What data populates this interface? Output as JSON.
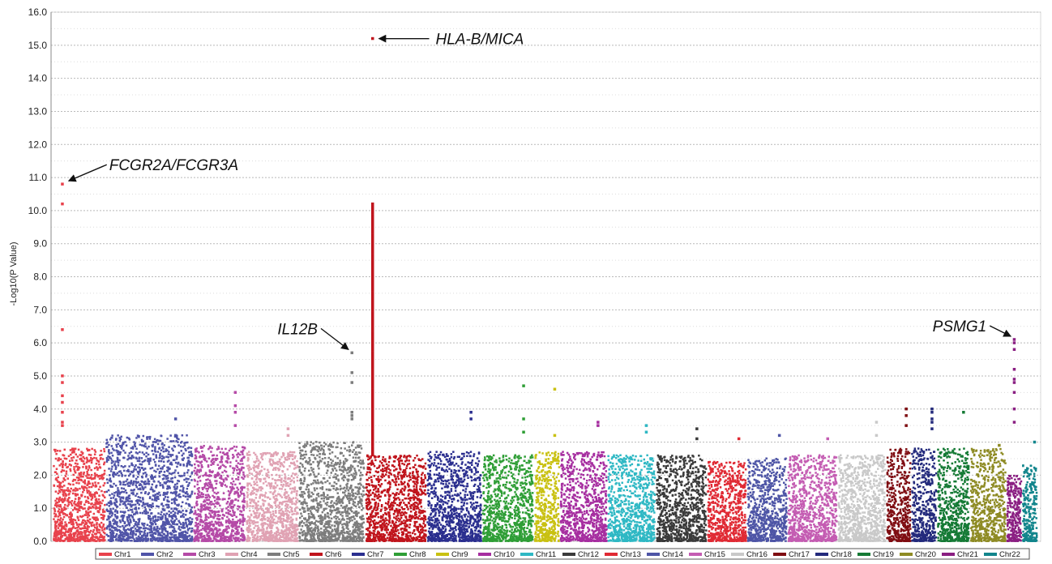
{
  "chart_data": {
    "type": "scatter",
    "title": "",
    "xlabel": "",
    "ylabel": "-Log10(P Value)",
    "ylim": [
      0,
      16
    ],
    "yticks": [
      "0.0",
      "1.0",
      "2.0",
      "3.0",
      "4.0",
      "5.0",
      "6.0",
      "7.0",
      "8.0",
      "9.0",
      "10.0",
      "11.0",
      "12.0",
      "13.0",
      "14.0",
      "15.0",
      "16.0"
    ],
    "grid": true,
    "legend_position": "bottom",
    "series": [
      {
        "name": "Chr1",
        "color": "#e8424c",
        "baseline_max": 2.8,
        "hits": [
          10.8,
          10.2,
          6.4,
          5.0,
          4.8,
          4.4,
          4.2,
          3.9,
          3.6,
          3.5
        ]
      },
      {
        "name": "Chr2",
        "color": "#5054a8",
        "baseline_max": 3.2,
        "hits": [
          3.7,
          3.2
        ]
      },
      {
        "name": "Chr3",
        "color": "#b54aa7",
        "baseline_max": 2.9,
        "hits": [
          4.5,
          4.1,
          3.9,
          3.5
        ]
      },
      {
        "name": "Chr4",
        "color": "#e0a2b3",
        "baseline_max": 2.7,
        "hits": [
          3.4,
          3.2
        ]
      },
      {
        "name": "Chr5",
        "color": "#7d7d7d",
        "baseline_max": 3.0,
        "hits": [
          5.7,
          5.1,
          4.8,
          3.9,
          3.8,
          3.7
        ]
      },
      {
        "name": "Chr6",
        "color": "#c0141c",
        "baseline_max": 2.6,
        "hits": [
          15.2,
          10.2,
          10.0,
          9.8,
          9.5,
          9.2,
          8.8,
          8.5,
          8.1,
          7.6,
          7.2,
          6.8,
          6.5,
          6.2,
          5.8
        ]
      },
      {
        "name": "Chr7",
        "color": "#2b2f8f",
        "baseline_max": 2.7,
        "hits": [
          3.9,
          3.7
        ]
      },
      {
        "name": "Chr8",
        "color": "#2f9e36",
        "baseline_max": 2.6,
        "hits": [
          4.7,
          3.7,
          3.3
        ]
      },
      {
        "name": "Chr9",
        "color": "#c9c112",
        "baseline_max": 2.7,
        "hits": [
          4.6,
          3.2
        ]
      },
      {
        "name": "Chr10",
        "color": "#a62ea0",
        "baseline_max": 2.7,
        "hits": [
          3.6,
          3.5
        ]
      },
      {
        "name": "Chr11",
        "color": "#2fb8c4",
        "baseline_max": 2.6,
        "hits": [
          3.5,
          3.3
        ]
      },
      {
        "name": "Chr12",
        "color": "#3a3a3a",
        "baseline_max": 2.6,
        "hits": [
          3.4,
          3.1
        ]
      },
      {
        "name": "Chr13",
        "color": "#e02a34",
        "baseline_max": 2.4,
        "hits": [
          3.1
        ]
      },
      {
        "name": "Chr14",
        "color": "#4e55a6",
        "baseline_max": 2.5,
        "hits": [
          3.2
        ]
      },
      {
        "name": "Chr15",
        "color": "#c45cb2",
        "baseline_max": 2.6,
        "hits": [
          3.1
        ]
      },
      {
        "name": "Chr16",
        "color": "#c9c9c9",
        "baseline_max": 2.6,
        "hits": [
          3.6,
          3.2
        ]
      },
      {
        "name": "Chr17",
        "color": "#7f0d12",
        "baseline_max": 2.8,
        "hits": [
          4.0,
          3.8,
          3.5
        ]
      },
      {
        "name": "Chr18",
        "color": "#232a7c",
        "baseline_max": 2.8,
        "hits": [
          4.0,
          3.9,
          3.7,
          3.6,
          3.4
        ]
      },
      {
        "name": "Chr19",
        "color": "#157a35",
        "baseline_max": 2.8,
        "hits": [
          3.9
        ]
      },
      {
        "name": "Chr20",
        "color": "#8e8b24",
        "baseline_max": 2.8,
        "hits": [
          2.9
        ]
      },
      {
        "name": "Chr21",
        "color": "#8a1f82",
        "baseline_max": 2.0,
        "hits": [
          6.1,
          6.0,
          5.8,
          5.2,
          4.9,
          4.8,
          4.5,
          4.0,
          3.6
        ]
      },
      {
        "name": "Chr22",
        "color": "#12858c",
        "baseline_max": 2.3,
        "hits": [
          3.0
        ]
      }
    ],
    "annotations": [
      {
        "text": "HLA-B/MICA",
        "chromosome": "Chr6",
        "y": 15.2
      },
      {
        "text": "FCGR2A/FCGR3A",
        "chromosome": "Chr1",
        "y": 10.8
      },
      {
        "text": "IL12B",
        "chromosome": "Chr5",
        "y": 5.7
      },
      {
        "text": "PSMG1",
        "chromosome": "Chr21",
        "y": 6.1
      }
    ]
  }
}
